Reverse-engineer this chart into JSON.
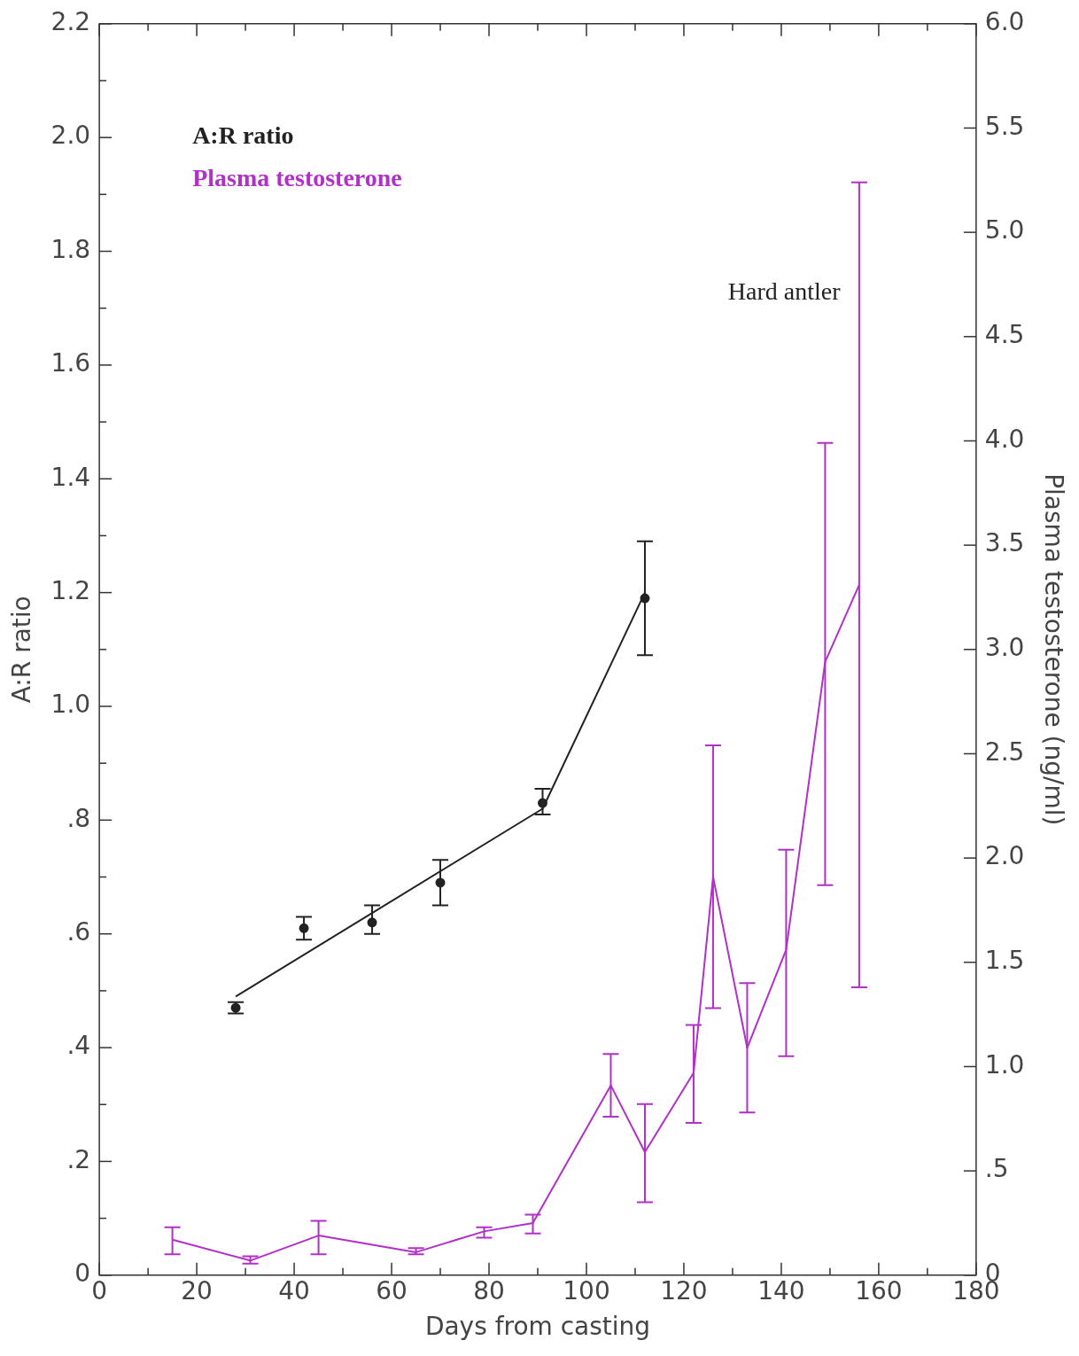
{
  "chart_data": {
    "type": "line",
    "xlabel": "Days from casting",
    "ylabel": "A:R ratio",
    "y2label": "Plasma testosterone (ng/ml)",
    "legend": "top left",
    "grid": false,
    "xlim": [
      0,
      180
    ],
    "xticks": [
      0,
      {
        "value": 10,
        "label": null
      },
      20,
      {
        "value": 30,
        "label": null
      },
      40,
      {
        "value": 50,
        "label": null
      },
      60,
      {
        "value": 70,
        "label": null
      },
      80,
      {
        "value": 90,
        "label": null
      },
      100,
      {
        "value": 110,
        "label": null
      },
      120,
      {
        "value": 130,
        "label": null
      },
      140,
      {
        "value": 150,
        "label": null
      },
      160,
      {
        "value": 170,
        "label": null
      },
      180
    ],
    "ylim": [
      0,
      2.2
    ],
    "yticks": [
      0,
      {
        "value": 0.1,
        "label": null
      },
      {
        "value": 0.2,
        "label": ".2"
      },
      {
        "value": 0.3,
        "label": null
      },
      {
        "value": 0.4,
        "label": ".4"
      },
      {
        "value": 0.5,
        "label": null
      },
      {
        "value": 0.6,
        "label": ".6"
      },
      {
        "value": 0.7,
        "label": null
      },
      {
        "value": 0.8,
        "label": ".8"
      },
      {
        "value": 0.9,
        "label": null
      },
      {
        "value": 1,
        "label": "1.0"
      },
      {
        "value": 1.1,
        "label": null
      },
      1.2,
      {
        "value": 1.3,
        "label": null
      },
      1.4,
      {
        "value": 1.5,
        "label": null
      },
      1.6,
      {
        "value": 1.7,
        "label": null
      },
      1.8,
      {
        "value": 1.9,
        "label": null
      },
      {
        "value": 2,
        "label": "2.0"
      },
      {
        "value": 2.1,
        "label": null
      },
      2.2
    ],
    "y2lim": [
      0,
      6
    ],
    "y2ticks": [
      0,
      {
        "value": 0.5,
        "label": ".5"
      },
      {
        "value": 1,
        "label": "1.0"
      },
      1.5,
      {
        "value": 2,
        "label": "2.0"
      },
      2.5,
      {
        "value": 3,
        "label": "3.0"
      },
      3.5,
      {
        "value": 4,
        "label": "4.0"
      },
      4.5,
      {
        "value": 5,
        "label": "5.0"
      },
      5.5,
      {
        "value": 6,
        "label": "6.0"
      }
    ],
    "annotations": [
      "Hard antler"
    ],
    "series": [
      {
        "name": "A:R ratio",
        "type": "scatter",
        "color": "#222222",
        "x": [
          28,
          42,
          56,
          70,
          91,
          112
        ],
        "values": [
          0.47,
          0.61,
          0.62,
          0.69,
          0.83,
          1.19
        ],
        "errors": [
          [
            0.46,
            0.48
          ],
          [
            0.59,
            0.63
          ],
          [
            0.6,
            0.65
          ],
          [
            0.65,
            0.73
          ],
          [
            0.81,
            0.855
          ],
          [
            1.09,
            1.29
          ]
        ]
      },
      {
        "type": "line",
        "color": "#222222",
        "x": [
          28,
          91,
          112
        ],
        "values": [
          0.49,
          0.82,
          1.2
        ]
      },
      {
        "name": "Plasma testosterone",
        "type": "line",
        "axis": "y2",
        "color": "#b030c8",
        "x": [
          15,
          31,
          45,
          65,
          79,
          89,
          105,
          112,
          122,
          126,
          133,
          141,
          149,
          156
        ],
        "values": [
          0.17,
          0.07,
          0.19,
          0.11,
          0.21,
          0.25,
          0.91,
          0.59,
          0.97,
          1.91,
          1.09,
          1.56,
          2.94,
          3.31
        ],
        "errors": [
          [
            0.1,
            0.23
          ],
          [
            0.055,
            0.09
          ],
          [
            0.1,
            0.26
          ],
          [
            0.1,
            0.13
          ],
          [
            0.18,
            0.23
          ],
          [
            0.2,
            0.29
          ],
          [
            0.76,
            1.06
          ],
          [
            0.35,
            0.82
          ],
          [
            0.73,
            1.2
          ],
          [
            1.28,
            2.54
          ],
          [
            0.78,
            1.4
          ],
          [
            1.05,
            2.04
          ],
          [
            1.87,
            3.99
          ],
          [
            1.38,
            5.24
          ]
        ]
      }
    ]
  }
}
